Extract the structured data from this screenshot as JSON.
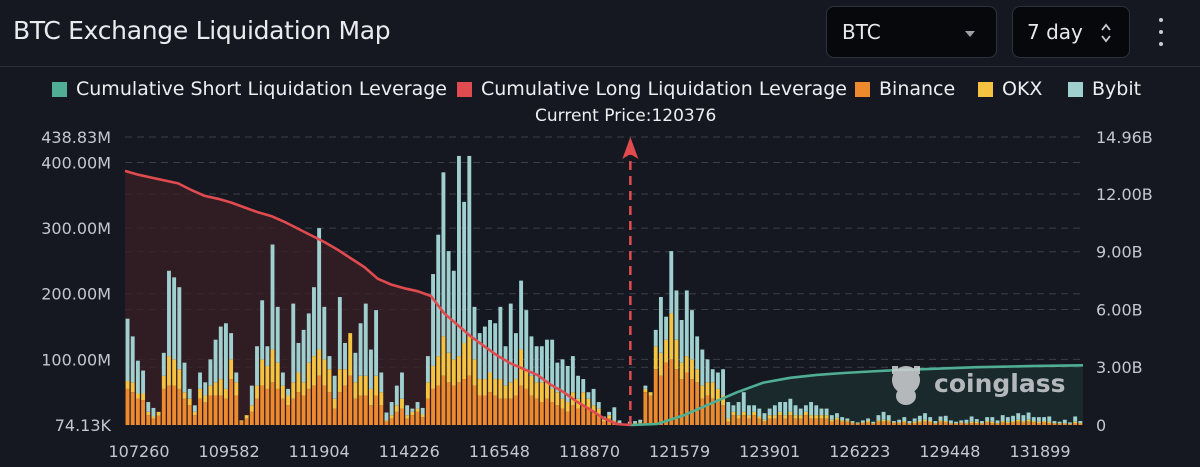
{
  "header": {
    "title": "BTC Exchange Liquidation Map",
    "symbol_select": {
      "value": "BTC",
      "icon": "caret-down-icon"
    },
    "period_select": {
      "value": "7 day",
      "icon": "updown-chevron-icon"
    },
    "menu_icon": "kebab-menu-icon"
  },
  "legend": [
    {
      "label": "Cumulative Short Liquidation Leverage",
      "color": "#4fae93"
    },
    {
      "label": "Cumulative Long Liquidation Leverage",
      "color": "#e04b4f"
    },
    {
      "label": "Binance",
      "color": "#ee8a2e"
    },
    {
      "label": "OKX",
      "color": "#f4c340"
    },
    {
      "label": "Bybit",
      "color": "#9fcfcf"
    }
  ],
  "current_price_label": "Current Price:120376",
  "watermark": "coinglass",
  "chart_data": {
    "type": "bar",
    "title": "BTC Exchange Liquidation Map",
    "current_price": 120376,
    "current_price_fraction": 0.5275,
    "x_tick_labels": [
      "107260",
      "109582",
      "111904",
      "114226",
      "116548",
      "118870",
      "121579",
      "123901",
      "126223",
      "129448",
      "131899"
    ],
    "left_axis": {
      "min_label": "74.13K",
      "max_label": "438.83M",
      "max": 438.83,
      "unit": "M",
      "ticks": [
        {
          "v": 400,
          "label": "400.00M"
        },
        {
          "v": 300,
          "label": "300.00M"
        },
        {
          "v": 200,
          "label": "200.00M"
        },
        {
          "v": 100,
          "label": "100.00M"
        }
      ]
    },
    "right_axis": {
      "max_label": "14.96B",
      "max": 14.96,
      "unit": "B",
      "ticks": [
        {
          "v": 12,
          "label": "12.00B"
        },
        {
          "v": 9,
          "label": "9.00B"
        },
        {
          "v": 6,
          "label": "6.00B"
        },
        {
          "v": 3,
          "label": "3.00B"
        },
        {
          "v": 0,
          "label": "0"
        }
      ]
    },
    "series_names": [
      "Binance",
      "OKX",
      "Bybit"
    ],
    "bars_millions": [
      [
        55,
        12,
        95
      ],
      [
        50,
        15,
        70
      ],
      [
        40,
        8,
        50
      ],
      [
        38,
        10,
        35
      ],
      [
        15,
        5,
        15
      ],
      [
        10,
        3,
        13
      ],
      [
        14,
        6,
        0
      ],
      [
        55,
        20,
        35
      ],
      [
        60,
        45,
        130
      ],
      [
        60,
        40,
        125
      ],
      [
        55,
        30,
        125
      ],
      [
        40,
        10,
        45
      ],
      [
        30,
        10,
        15
      ],
      [
        15,
        5,
        10
      ],
      [
        40,
        15,
        25
      ],
      [
        35,
        10,
        20
      ],
      [
        45,
        15,
        40
      ],
      [
        45,
        20,
        65
      ],
      [
        45,
        25,
        80
      ],
      [
        40,
        15,
        100
      ],
      [
        70,
        30,
        40
      ],
      [
        45,
        20,
        15
      ],
      [
        5,
        2,
        0
      ],
      [
        10,
        5,
        0
      ],
      [
        20,
        10,
        30
      ],
      [
        40,
        20,
        60
      ],
      [
        60,
        40,
        90
      ],
      [
        55,
        35,
        30
      ],
      [
        65,
        50,
        160
      ],
      [
        55,
        40,
        85
      ],
      [
        40,
        20,
        20
      ],
      [
        30,
        15,
        10
      ],
      [
        40,
        25,
        120
      ],
      [
        50,
        30,
        45
      ],
      [
        45,
        20,
        80
      ],
      [
        55,
        40,
        75
      ],
      [
        60,
        45,
        105
      ],
      [
        75,
        40,
        185
      ],
      [
        60,
        40,
        80
      ],
      [
        50,
        35,
        20
      ],
      [
        25,
        15,
        35
      ],
      [
        50,
        35,
        110
      ],
      [
        60,
        25,
        40
      ],
      [
        75,
        65,
        0
      ],
      [
        40,
        25,
        45
      ],
      [
        45,
        30,
        80
      ],
      [
        45,
        30,
        110
      ],
      [
        30,
        25,
        60
      ],
      [
        45,
        30,
        100
      ],
      [
        30,
        20,
        30
      ],
      [
        5,
        2,
        12
      ],
      [
        10,
        5,
        20
      ],
      [
        20,
        10,
        30
      ],
      [
        25,
        15,
        40
      ],
      [
        10,
        5,
        15
      ],
      [
        15,
        5,
        5
      ],
      [
        20,
        5,
        10
      ],
      [
        12,
        4,
        10
      ],
      [
        40,
        25,
        40
      ],
      [
        55,
        35,
        140
      ],
      [
        60,
        45,
        185
      ],
      [
        75,
        60,
        250
      ],
      [
        65,
        45,
        155
      ],
      [
        60,
        40,
        135
      ],
      [
        65,
        40,
        305
      ],
      [
        70,
        55,
        215
      ],
      [
        75,
        60,
        275
      ],
      [
        60,
        40,
        80
      ],
      [
        45,
        25,
        70
      ],
      [
        45,
        25,
        80
      ],
      [
        50,
        30,
        80
      ],
      [
        45,
        25,
        85
      ],
      [
        40,
        30,
        110
      ],
      [
        40,
        20,
        60
      ],
      [
        40,
        25,
        120
      ],
      [
        45,
        25,
        70
      ],
      [
        60,
        55,
        105
      ],
      [
        55,
        30,
        90
      ],
      [
        45,
        30,
        60
      ],
      [
        40,
        25,
        55
      ],
      [
        35,
        30,
        55
      ],
      [
        40,
        25,
        65
      ],
      [
        35,
        20,
        75
      ],
      [
        30,
        20,
        45
      ],
      [
        25,
        15,
        60
      ],
      [
        20,
        15,
        55
      ],
      [
        30,
        20,
        55
      ],
      [
        25,
        15,
        35
      ],
      [
        30,
        20,
        20
      ],
      [
        25,
        15,
        10
      ],
      [
        20,
        10,
        25
      ],
      [
        15,
        10,
        10
      ],
      [
        5,
        3,
        5
      ],
      [
        10,
        5,
        5
      ],
      [
        5,
        2,
        20
      ],
      [
        2,
        1,
        4
      ],
      [
        0,
        0,
        0
      ],
      [
        2,
        1,
        2
      ],
      [
        2,
        1,
        3
      ],
      [
        3,
        1,
        4
      ],
      [
        50,
        5,
        5
      ],
      [
        45,
        5,
        0
      ],
      [
        85,
        35,
        25
      ],
      [
        75,
        35,
        85
      ],
      [
        95,
        35,
        35
      ],
      [
        100,
        70,
        95
      ],
      [
        85,
        45,
        75
      ],
      [
        70,
        25,
        65
      ],
      [
        80,
        25,
        100
      ],
      [
        70,
        30,
        75
      ],
      [
        65,
        20,
        50
      ],
      [
        40,
        20,
        55
      ],
      [
        45,
        20,
        35
      ],
      [
        40,
        25,
        20
      ],
      [
        35,
        20,
        25
      ],
      [
        30,
        15,
        40
      ],
      [
        5,
        5,
        25
      ],
      [
        15,
        5,
        10
      ],
      [
        10,
        5,
        20
      ],
      [
        15,
        5,
        30
      ],
      [
        10,
        5,
        15
      ],
      [
        15,
        5,
        10
      ],
      [
        10,
        3,
        12
      ],
      [
        5,
        3,
        10
      ],
      [
        10,
        5,
        10
      ],
      [
        10,
        5,
        15
      ],
      [
        15,
        5,
        15
      ],
      [
        10,
        5,
        20
      ],
      [
        15,
        5,
        20
      ],
      [
        10,
        5,
        15
      ],
      [
        10,
        5,
        10
      ],
      [
        15,
        5,
        10
      ],
      [
        10,
        5,
        20
      ],
      [
        10,
        5,
        15
      ],
      [
        10,
        5,
        10
      ],
      [
        10,
        5,
        10
      ],
      [
        5,
        3,
        7
      ],
      [
        8,
        3,
        7
      ],
      [
        5,
        2,
        5
      ],
      [
        5,
        2,
        3
      ],
      [
        3,
        1,
        2
      ],
      [
        2,
        1,
        1
      ],
      [
        3,
        1,
        3
      ],
      [
        4,
        2,
        4
      ],
      [
        2,
        1,
        2
      ],
      [
        5,
        2,
        8
      ],
      [
        5,
        3,
        12
      ],
      [
        5,
        2,
        8
      ],
      [
        3,
        1,
        2
      ],
      [
        3,
        1,
        4
      ],
      [
        4,
        2,
        6
      ],
      [
        2,
        1,
        3
      ],
      [
        3,
        2,
        5
      ],
      [
        4,
        2,
        8
      ],
      [
        5,
        3,
        10
      ],
      [
        4,
        2,
        6
      ],
      [
        2,
        1,
        3
      ],
      [
        5,
        2,
        6
      ],
      [
        4,
        2,
        8
      ],
      [
        2,
        1,
        4
      ],
      [
        2,
        1,
        2
      ],
      [
        3,
        1,
        3
      ],
      [
        2,
        1,
        5
      ],
      [
        3,
        2,
        8
      ],
      [
        3,
        2,
        4
      ],
      [
        2,
        1,
        3
      ],
      [
        4,
        2,
        6
      ],
      [
        3,
        2,
        7
      ],
      [
        2,
        1,
        4
      ],
      [
        4,
        2,
        9
      ],
      [
        3,
        2,
        7
      ],
      [
        4,
        2,
        8
      ],
      [
        5,
        3,
        10
      ],
      [
        4,
        2,
        9
      ],
      [
        5,
        3,
        11
      ],
      [
        4,
        2,
        6
      ],
      [
        3,
        2,
        7
      ],
      [
        4,
        2,
        6
      ],
      [
        3,
        2,
        8
      ],
      [
        2,
        1,
        3
      ],
      [
        2,
        1,
        2
      ],
      [
        2,
        1,
        5
      ],
      [
        1,
        1,
        2
      ],
      [
        3,
        2,
        8
      ],
      [
        2,
        1,
        3
      ]
    ],
    "long_cumulative_B": [
      13.2,
      13.0,
      12.85,
      12.7,
      12.55,
      12.2,
      11.9,
      11.75,
      11.55,
      11.3,
      11.05,
      10.85,
      10.55,
      10.2,
      9.85,
      9.5,
      9.1,
      8.65,
      8.2,
      7.6,
      7.3,
      7.1,
      6.95,
      6.7,
      5.8,
      5.2,
      4.6,
      4.1,
      3.6,
      3.2,
      2.9,
      2.6,
      2.1,
      1.7,
      1.2,
      0.8,
      0.35,
      0.05,
      0.0
    ],
    "short_cumulative_B": [
      0.0,
      0.05,
      0.5,
      1.1,
      1.7,
      2.2,
      2.45,
      2.6,
      2.7,
      2.78,
      2.85,
      2.9,
      2.95,
      3.0,
      3.03,
      3.06,
      3.08,
      3.1
    ]
  }
}
